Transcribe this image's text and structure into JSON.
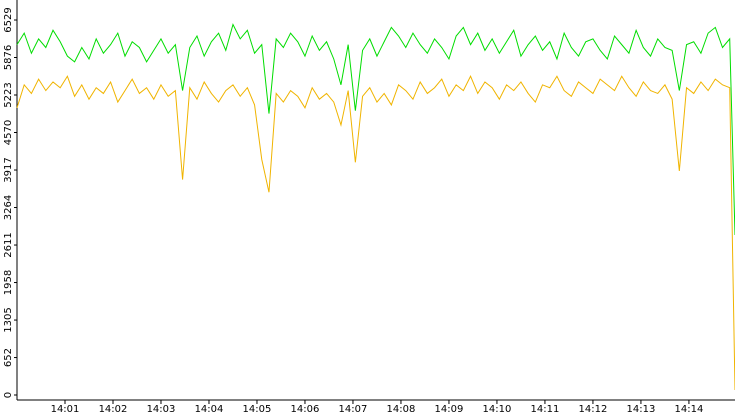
{
  "chart_data": {
    "type": "line",
    "x": [
      0,
      0.15,
      0.3,
      0.45,
      0.6,
      0.75,
      0.9,
      1.05,
      1.2,
      1.35,
      1.5,
      1.65,
      1.8,
      1.95,
      2.1,
      2.25,
      2.4,
      2.55,
      2.7,
      2.85,
      3,
      3.15,
      3.3,
      3.45,
      3.6,
      3.75,
      3.9,
      4.05,
      4.2,
      4.35,
      4.5,
      4.65,
      4.8,
      4.95,
      5.1,
      5.25,
      5.4,
      5.55,
      5.7,
      5.85,
      6,
      6.15,
      6.3,
      6.45,
      6.6,
      6.75,
      6.9,
      7.05,
      7.2,
      7.35,
      7.5,
      7.65,
      7.8,
      7.95,
      8.1,
      8.25,
      8.4,
      8.55,
      8.7,
      8.85,
      9,
      9.15,
      9.3,
      9.45,
      9.6,
      9.75,
      9.9,
      10.05,
      10.2,
      10.35,
      10.5,
      10.65,
      10.8,
      10.95,
      11.1,
      11.25,
      11.4,
      11.55,
      11.7,
      11.85,
      12,
      12.15,
      12.3,
      12.45,
      12.6,
      12.75,
      12.9,
      13.05,
      13.2,
      13.35,
      13.5,
      13.65,
      13.8,
      13.95,
      14.1,
      14.25,
      14.4,
      14.55,
      14.7,
      14.85,
      14.96
    ],
    "series": [
      {
        "color": "#00dd00",
        "values": [
          6100,
          6300,
          5950,
          6200,
          6050,
          6350,
          6150,
          5900,
          5800,
          6050,
          5850,
          6200,
          5950,
          6100,
          6300,
          5900,
          6150,
          6050,
          5800,
          6000,
          6200,
          5950,
          6100,
          5300,
          6050,
          6250,
          5900,
          6150,
          6300,
          6000,
          6450,
          6200,
          6350,
          5950,
          6100,
          4900,
          6200,
          6050,
          6300,
          6150,
          5900,
          6250,
          6000,
          6150,
          5850,
          5400,
          6100,
          4950,
          6000,
          6200,
          5900,
          6150,
          6400,
          6250,
          6050,
          6300,
          6100,
          5950,
          6200,
          6050,
          5850,
          6250,
          6400,
          6100,
          6300,
          6000,
          6200,
          5950,
          6150,
          6350,
          5900,
          6100,
          6250,
          6000,
          6150,
          5850,
          6300,
          6050,
          5900,
          6150,
          6200,
          6000,
          5850,
          6250,
          6100,
          5950,
          6350,
          6050,
          5900,
          6200,
          6050,
          6000,
          5300,
          6100,
          6150,
          5950,
          6300,
          6400,
          6050,
          6200,
          2786
        ]
      },
      {
        "color": "#f0b400",
        "values": [
          5000,
          5400,
          5250,
          5500,
          5300,
          5450,
          5350,
          5550,
          5200,
          5400,
          5150,
          5350,
          5250,
          5450,
          5100,
          5300,
          5500,
          5250,
          5350,
          5150,
          5400,
          5200,
          5300,
          3750,
          5350,
          5150,
          5450,
          5250,
          5100,
          5300,
          5400,
          5200,
          5350,
          5050,
          4100,
          3530,
          5250,
          5100,
          5300,
          5200,
          5000,
          5350,
          5150,
          5250,
          5100,
          4700,
          5300,
          4050,
          5200,
          5350,
          5100,
          5250,
          5050,
          5400,
          5300,
          5150,
          5450,
          5250,
          5350,
          5500,
          5200,
          5400,
          5300,
          5550,
          5250,
          5450,
          5350,
          5150,
          5400,
          5300,
          5450,
          5250,
          5100,
          5400,
          5350,
          5550,
          5300,
          5200,
          5450,
          5350,
          5250,
          5500,
          5400,
          5300,
          5550,
          5350,
          5200,
          5450,
          5300,
          5250,
          5400,
          5150,
          3900,
          5350,
          5250,
          5450,
          5300,
          5500,
          5400,
          5350,
          87
        ]
      }
    ],
    "xlim": [
      0,
      14.96
    ],
    "xticks": [
      {
        "value": 1,
        "label": "14:01"
      },
      {
        "value": 2,
        "label": "14:02"
      },
      {
        "value": 3,
        "label": "14:03"
      },
      {
        "value": 4,
        "label": "14:04"
      },
      {
        "value": 5,
        "label": "14:05"
      },
      {
        "value": 6,
        "label": "14:06"
      },
      {
        "value": 7,
        "label": "14:07"
      },
      {
        "value": 8,
        "label": "14:08"
      },
      {
        "value": 9,
        "label": "14:09"
      },
      {
        "value": 10,
        "label": "14:10"
      },
      {
        "value": 11,
        "label": "14:11"
      },
      {
        "value": 12,
        "label": "14:12"
      },
      {
        "value": 13,
        "label": "14:13"
      },
      {
        "value": 14,
        "label": "14:14"
      }
    ],
    "ylim": [
      0,
      6877
    ],
    "yticks": [
      0,
      652,
      1305,
      1958,
      2611,
      3264,
      3917,
      4570,
      5223,
      5876,
      6529
    ]
  }
}
